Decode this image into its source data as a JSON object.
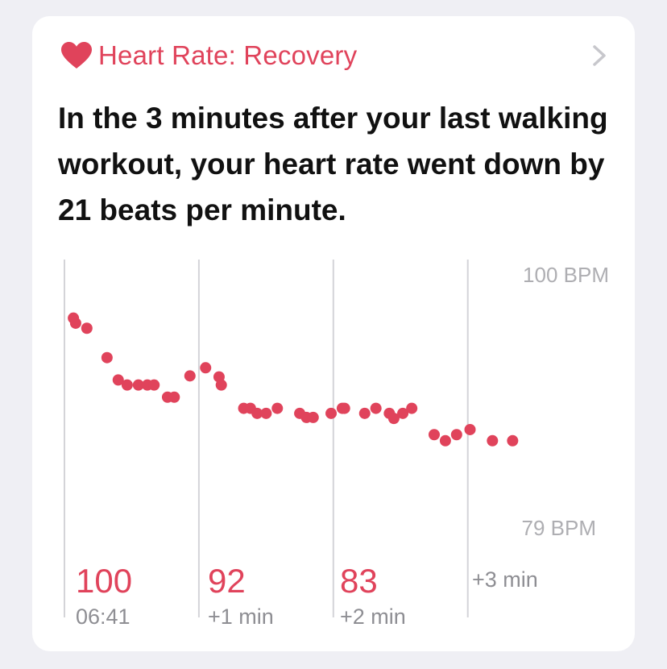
{
  "card": {
    "title": "Heart Rate: Recovery",
    "summary": "In the 3 minutes after your last walking workout, your heart rate went down by 21 beats per minute.",
    "icons": {
      "title_icon": "heart-icon",
      "nav_icon": "chevron-right-icon"
    }
  },
  "colors": {
    "accent": "#e0435b",
    "muted": "#aeaeb2",
    "label": "#8e8e93",
    "gridline": "#d4d4d8",
    "card": "#ffffff",
    "background": "#efeff4"
  },
  "chart_data": {
    "type": "scatter",
    "x_unit": "seconds after workout",
    "y_unit": "BPM",
    "xlim": [
      0,
      197
    ],
    "ylim": [
      79,
      100
    ],
    "reference_labels": [
      "100 BPM",
      "79 BPM"
    ],
    "gridlines_at_seconds": [
      0,
      60,
      120,
      180
    ],
    "buckets": [
      {
        "value": "100",
        "label": "06:41"
      },
      {
        "value": "92",
        "label": "+1 min"
      },
      {
        "value": "83",
        "label": "+2 min"
      },
      {
        "value": "",
        "label": "+3 min"
      }
    ],
    "points": [
      [
        4,
        97.4
      ],
      [
        5,
        96.9
      ],
      [
        10,
        96.4
      ],
      [
        19,
        93.5
      ],
      [
        24,
        91.3
      ],
      [
        28,
        90.8
      ],
      [
        33,
        90.8
      ],
      [
        37,
        90.8
      ],
      [
        40,
        90.8
      ],
      [
        46,
        89.6
      ],
      [
        49,
        89.6
      ],
      [
        56,
        91.7
      ],
      [
        63,
        92.5
      ],
      [
        69,
        91.6
      ],
      [
        70,
        90.8
      ],
      [
        80,
        88.5
      ],
      [
        83,
        88.5
      ],
      [
        86,
        88.0
      ],
      [
        90,
        88.0
      ],
      [
        95,
        88.5
      ],
      [
        105,
        88.0
      ],
      [
        108,
        87.6
      ],
      [
        111,
        87.6
      ],
      [
        119,
        88.0
      ],
      [
        124,
        88.5
      ],
      [
        125,
        88.5
      ],
      [
        134,
        88.0
      ],
      [
        139,
        88.5
      ],
      [
        145,
        88.0
      ],
      [
        147,
        87.5
      ],
      [
        151,
        88.0
      ],
      [
        155,
        88.5
      ],
      [
        165,
        85.9
      ],
      [
        170,
        85.3
      ],
      [
        175,
        85.9
      ],
      [
        181,
        86.4
      ],
      [
        191,
        85.3
      ],
      [
        200,
        85.3
      ]
    ]
  }
}
